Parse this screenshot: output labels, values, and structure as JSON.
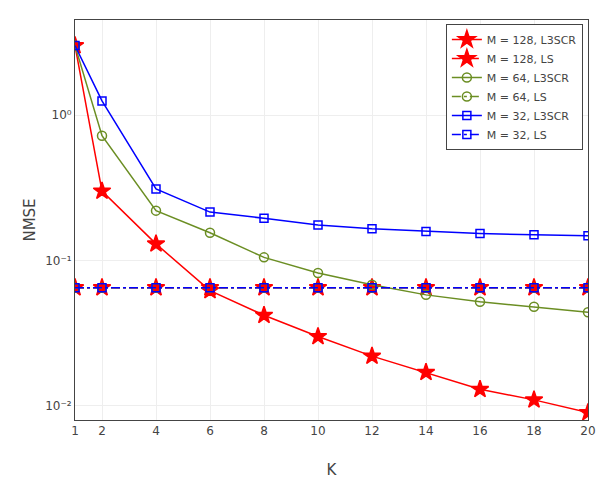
{
  "chart_data": {
    "type": "line",
    "xlabel": "K",
    "ylabel": "NMSE",
    "x": [
      1,
      2,
      4,
      6,
      8,
      10,
      12,
      14,
      16,
      18,
      20
    ],
    "series": [
      {
        "name": "M = 128, L3SCR",
        "color": "#FF0000",
        "marker": "star",
        "line_style": "solid",
        "values": [
          3.0,
          0.3,
          0.13,
          0.062,
          0.042,
          0.03,
          0.022,
          0.017,
          0.013,
          0.011,
          0.009
        ]
      },
      {
        "name": "M = 128, LS",
        "color": "#FF0000",
        "marker": "star",
        "line_style": "dashdot",
        "values": [
          0.065,
          0.065,
          0.065,
          0.065,
          0.065,
          0.065,
          0.065,
          0.065,
          0.065,
          0.065,
          0.065
        ]
      },
      {
        "name": "M = 64, L3SCR",
        "color": "#6B8E23",
        "marker": "circle-open",
        "line_style": "solid",
        "values": [
          3.0,
          0.72,
          0.22,
          0.155,
          0.105,
          0.082,
          0.068,
          0.058,
          0.052,
          0.048,
          0.044
        ]
      },
      {
        "name": "M = 64, LS",
        "color": "#6B8E23",
        "marker": "circle-open",
        "line_style": "dashdot",
        "values": [
          0.065,
          0.065,
          0.065,
          0.065,
          0.065,
          0.065,
          0.065,
          0.065,
          0.065,
          0.065,
          0.065
        ]
      },
      {
        "name": "M = 32, L3SCR",
        "color": "#0000FF",
        "marker": "square-open",
        "line_style": "solid",
        "values": [
          3.0,
          1.25,
          0.31,
          0.215,
          0.195,
          0.175,
          0.165,
          0.158,
          0.153,
          0.15,
          0.148
        ]
      },
      {
        "name": "M = 32, LS",
        "color": "#0000FF",
        "marker": "square-open",
        "line_style": "dashdot",
        "values": [
          0.065,
          0.065,
          0.065,
          0.065,
          0.065,
          0.065,
          0.065,
          0.065,
          0.065,
          0.065,
          0.065
        ]
      }
    ],
    "xlim": [
      1,
      20
    ],
    "xticks": [
      1,
      2,
      4,
      6,
      8,
      10,
      12,
      14,
      16,
      18,
      20
    ],
    "ylim": [
      0.008,
      4.5
    ],
    "yticks": [
      {
        "value": 0.01,
        "label": "10⁻²"
      },
      {
        "value": 0.1,
        "label": "10⁻¹"
      },
      {
        "value": 1,
        "label": "10⁰"
      }
    ],
    "log": "y",
    "grid": true,
    "legend": "upper right"
  }
}
